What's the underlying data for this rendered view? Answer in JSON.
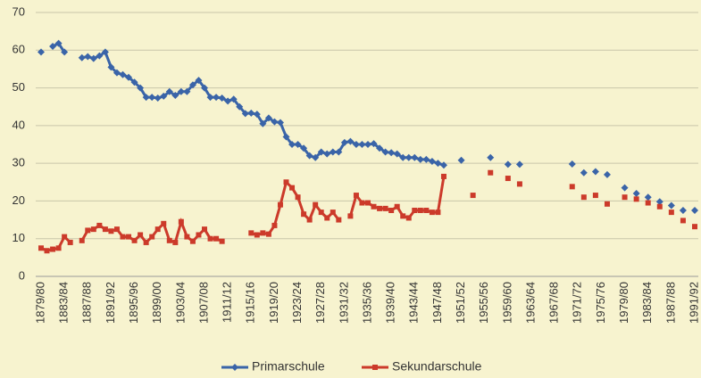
{
  "chart_data": {
    "type": "line",
    "categories": [
      "1879/80",
      null,
      null,
      null,
      "1883/84",
      null,
      null,
      null,
      "1887/88",
      null,
      null,
      null,
      "1891/92",
      null,
      null,
      null,
      "1895/96",
      null,
      null,
      null,
      "1899/00",
      null,
      null,
      null,
      "1903/04",
      null,
      null,
      null,
      "1907/08",
      null,
      null,
      null,
      "1911/12",
      null,
      null,
      null,
      "1915/16",
      null,
      null,
      null,
      "1919/20",
      null,
      null,
      null,
      "1923/24",
      null,
      null,
      null,
      "1927/28",
      null,
      null,
      null,
      "1931/32",
      null,
      null,
      null,
      "1935/36",
      null,
      null,
      null,
      "1939/40",
      null,
      null,
      null,
      "1943/44",
      null,
      null,
      null,
      "1947/48",
      null,
      null,
      null,
      "1951/52",
      null,
      null,
      null,
      "1955/56",
      null,
      null,
      null,
      "1959/60",
      null,
      null,
      null,
      "1963/64",
      null,
      null,
      null,
      "1967/68",
      null,
      null,
      null,
      "1971/72",
      null,
      null,
      null,
      "1975/76",
      null,
      null,
      null,
      "1979/80",
      null,
      null,
      null,
      "1983/84",
      null,
      null,
      null,
      "1987/88",
      null,
      null,
      null,
      "1991/92"
    ],
    "series": [
      {
        "name": "Primarschule",
        "color": "#3a64a8",
        "marker": "diamond",
        "values": [
          59.5,
          null,
          61,
          61.8,
          59.5,
          null,
          null,
          58,
          58.3,
          57.8,
          58.5,
          59.5,
          55.5,
          54,
          53.5,
          52.8,
          51.5,
          50,
          47.5,
          47.5,
          47.3,
          47.8,
          49,
          48,
          49,
          49,
          50.8,
          52,
          50,
          47.5,
          47.5,
          47.3,
          46.5,
          47,
          45,
          43.2,
          43.3,
          43,
          40.5,
          42,
          41,
          40.8,
          37,
          35,
          35,
          34,
          32,
          31.5,
          33,
          32.5,
          33,
          33,
          35.5,
          35.8,
          35,
          35,
          35,
          35.2,
          34,
          33,
          32.8,
          32.5,
          31.5,
          31.5,
          31.5,
          31,
          31,
          30.5,
          30,
          29.5,
          null,
          null,
          30.8,
          null,
          null,
          null,
          null,
          31.5,
          null,
          null,
          29.7,
          null,
          29.7,
          null,
          null,
          null,
          null,
          null,
          null,
          null,
          null,
          29.8,
          null,
          27.5,
          null,
          27.8,
          null,
          27,
          null,
          null,
          23.5,
          null,
          22,
          null,
          21,
          null,
          19.8,
          null,
          18.8,
          null,
          17.5,
          null,
          17.5
        ]
      },
      {
        "name": "Sekundarschule",
        "color": "#cc3a2a",
        "marker": "square",
        "values": [
          7.5,
          6.8,
          7.2,
          7.5,
          10.5,
          9,
          null,
          9.5,
          12.2,
          12.5,
          13.5,
          12.5,
          12,
          12.5,
          10.5,
          10.5,
          9.5,
          11,
          9,
          10.5,
          12.5,
          14,
          9.5,
          9,
          14.5,
          10.5,
          9.3,
          11,
          12.5,
          10,
          10,
          9.3,
          null,
          null,
          null,
          null,
          11.5,
          11,
          11.5,
          11.2,
          13.5,
          19,
          25,
          23.5,
          21,
          16.5,
          15,
          19,
          17,
          15.5,
          17,
          15,
          null,
          16,
          21.5,
          19.5,
          19.5,
          18.5,
          18,
          18,
          17.5,
          18.5,
          16,
          15.5,
          17.5,
          17.5,
          17.5,
          17,
          17,
          26.5,
          null,
          null,
          null,
          null,
          21.5,
          null,
          null,
          27.5,
          null,
          null,
          26,
          null,
          24.5,
          null,
          null,
          null,
          null,
          null,
          null,
          null,
          null,
          23.8,
          null,
          21,
          null,
          21.5,
          null,
          19.2,
          null,
          null,
          21,
          null,
          20.5,
          null,
          19.5,
          null,
          18.5,
          null,
          17,
          null,
          14.8,
          null,
          13.2
        ]
      }
    ],
    "ylim": [
      0,
      70
    ],
    "yticks": [
      0,
      10,
      20,
      30,
      40,
      50,
      60,
      70
    ],
    "grid": true,
    "legend": "bottom"
  }
}
